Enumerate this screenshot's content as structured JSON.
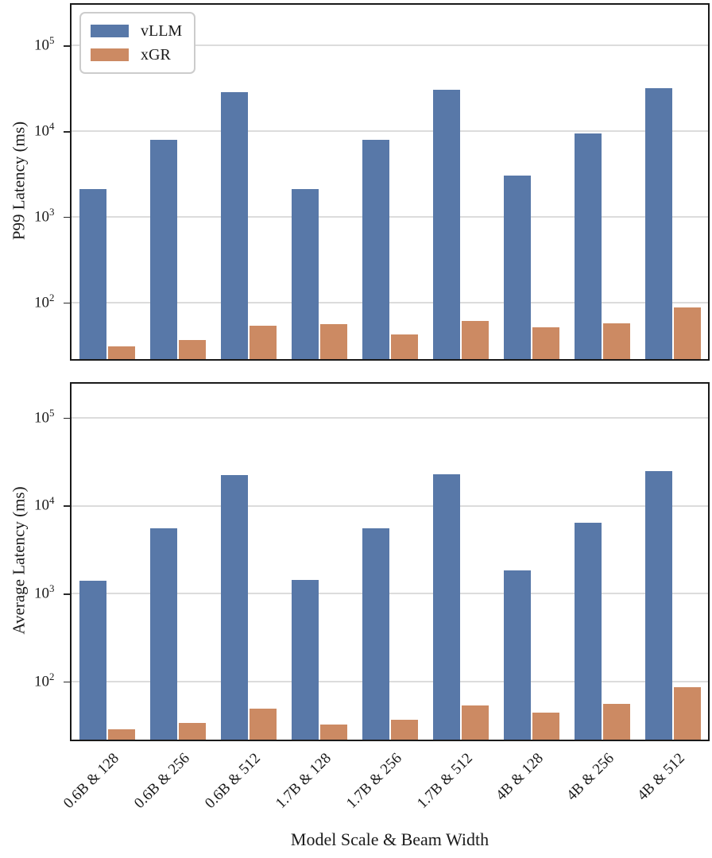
{
  "figure": {
    "background": "#ffffff"
  },
  "palette": {
    "vllm": "#5878A8",
    "xgr": "#CC8A63",
    "grid": "#DCDCDC",
    "spine": "#1A1A1A",
    "legend_border": "#CCCCCC"
  },
  "legend": {
    "position": "upper left",
    "items": [
      "vLLM",
      "xGR"
    ]
  },
  "chart_data": [
    {
      "type": "bar",
      "title": "",
      "ylabel": "P99 Latency (ms)",
      "xlabel": "Model Scale & Beam Width",
      "yscale": "log",
      "ylim": [
        22,
        300000
      ],
      "yticks": [
        100000,
        10000,
        1000,
        100
      ],
      "grid": "horizontal-major",
      "legend_visible": true,
      "categories": [
        "0.6B & 128",
        "0.6B & 256",
        "0.6B & 512",
        "1.7B & 128",
        "1.7B & 256",
        "1.7B & 512",
        "4B & 128",
        "4B & 256",
        "4B & 512"
      ],
      "series": [
        {
          "name": "vLLM",
          "color": "#5878A8",
          "values": [
            2100,
            8000,
            28500,
            2100,
            7900,
            30500,
            3050,
            9400,
            31800
          ]
        },
        {
          "name": "xGR",
          "color": "#CC8A63",
          "values": [
            31,
            37,
            54,
            56,
            43,
            61,
            52,
            57,
            88
          ]
        }
      ]
    },
    {
      "type": "bar",
      "title": "",
      "ylabel": "Average Latency (ms)",
      "xlabel": "Model Scale & Beam Width",
      "yscale": "log",
      "ylim": [
        22,
        245000
      ],
      "yticks": [
        100000,
        10000,
        1000,
        100
      ],
      "grid": "horizontal-major",
      "legend_visible": false,
      "categories": [
        "0.6B & 128",
        "0.6B & 256",
        "0.6B & 512",
        "1.7B & 128",
        "1.7B & 256",
        "1.7B & 512",
        "4B & 128",
        "4B & 256",
        "4B & 512"
      ],
      "series": [
        {
          "name": "vLLM",
          "color": "#5878A8",
          "values": [
            1400,
            5600,
            22500,
            1430,
            5600,
            23000,
            1850,
            6500,
            25000
          ]
        },
        {
          "name": "xGR",
          "color": "#CC8A63",
          "values": [
            29,
            34,
            50,
            33,
            37,
            54,
            45,
            56,
            86
          ]
        }
      ]
    }
  ]
}
